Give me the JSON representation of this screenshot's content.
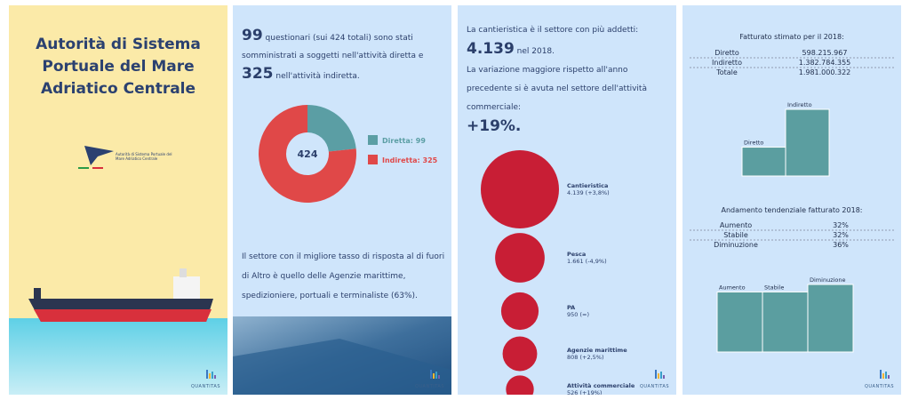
{
  "cover": {
    "title": "Autorità di Sistema Portuale del Mare Adriatico Centrale",
    "logo_text": "Autorità di Sistema Portuale del Mare Adriatico Centrale"
  },
  "survey": {
    "intro": [
      "99",
      " questionari (sui 424 totali) sono stati somministrati a soggetti nell'attività diretta e ",
      "325",
      " nell'attività indiretta."
    ],
    "donut": {
      "type": "pie",
      "total": 424,
      "series": [
        {
          "name": "Diretta: 99",
          "color": "#5b9ea4",
          "value": 99
        },
        {
          "name": "Indiretta: 325",
          "color": "#e04848",
          "value": 325
        }
      ]
    },
    "note": "Il settore con il migliore tasso di risposta al di fuori di Altro è quello delle Agenzie marittime, spedizioniere, portuali e terminaliste (63%)."
  },
  "employees": {
    "intro": [
      "La cantieristica è il settore con più addetti:",
      "4.139",
      " nel 2018.",
      "La variazione maggiore rispetto all'anno precedente si è avuta nel settore dell'attività commerciale:",
      "+19%."
    ],
    "bubbles": {
      "type": "bubble",
      "color": "#c81e35",
      "categories": [
        "Cantieristica",
        "Pesca",
        "PA",
        "Agenzie marittime",
        "Attività commerciale"
      ],
      "values": [
        4139,
        1661,
        950,
        808,
        526
      ],
      "value_labels": [
        "4.139 (+3,8%)",
        "1.661 (-4,9%)",
        "950 (=)",
        "808 (+2,5%)",
        "526 (+19%)"
      ]
    }
  },
  "revenue": {
    "title": "Fatturato stimato per il 2018:",
    "color": "#5b9ea0",
    "rows": [
      {
        "name": "Diretto",
        "value": 598215967,
        "label": "598.215.967"
      },
      {
        "name": "Indiretto",
        "value": 1382784355,
        "label": "1.382.784.355"
      },
      {
        "name": "Totale",
        "value": 1981000322,
        "label": "1.981.000.322"
      }
    ]
  },
  "trend": {
    "title": "Andamento tendenziale fatturato 2018:",
    "rows": [
      {
        "name": "Aumento",
        "value": 32,
        "label": "32%"
      },
      {
        "name": "Stabile",
        "value": 32,
        "label": "32%"
      },
      {
        "name": "Diminuzione",
        "value": 36,
        "label": "36%"
      }
    ]
  },
  "footer": {
    "logo": "QUANTITAS"
  }
}
